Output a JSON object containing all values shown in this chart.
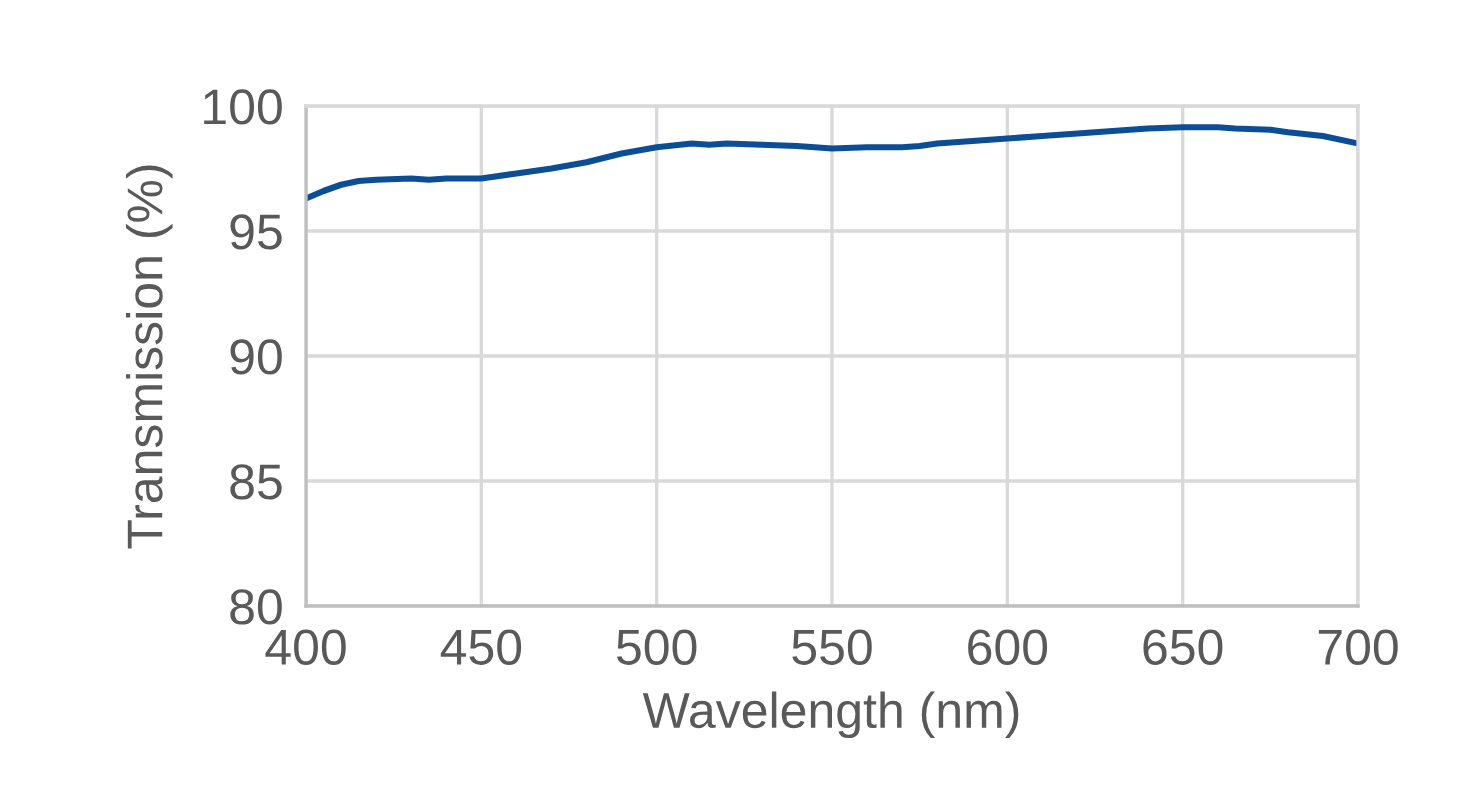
{
  "chart_data": {
    "type": "line",
    "xlabel": "Wavelength (nm)",
    "ylabel": "Transmission (%)",
    "x": [
      400,
      405,
      410,
      415,
      420,
      430,
      435,
      440,
      450,
      460,
      470,
      480,
      490,
      500,
      510,
      515,
      520,
      530,
      540,
      550,
      560,
      570,
      575,
      580,
      590,
      600,
      610,
      620,
      630,
      640,
      650,
      660,
      665,
      675,
      680,
      690,
      700
    ],
    "series": [
      {
        "color": "#0b4e96",
        "values": [
          96.3,
          96.6,
          96.85,
          97.0,
          97.05,
          97.1,
          97.05,
          97.1,
          97.1,
          97.3,
          97.5,
          97.75,
          98.1,
          98.35,
          98.5,
          98.45,
          98.5,
          98.45,
          98.4,
          98.3,
          98.35,
          98.35,
          98.4,
          98.5,
          98.6,
          98.7,
          98.8,
          98.9,
          99.0,
          99.1,
          99.15,
          99.15,
          99.1,
          99.05,
          98.95,
          98.8,
          98.5
        ]
      }
    ],
    "xlim": [
      400,
      700
    ],
    "xticks": [
      400,
      450,
      500,
      550,
      600,
      650,
      700
    ],
    "ylim": [
      80,
      100
    ],
    "yticks": [
      80,
      85,
      90,
      95,
      100
    ],
    "grid": true,
    "legend": false
  }
}
